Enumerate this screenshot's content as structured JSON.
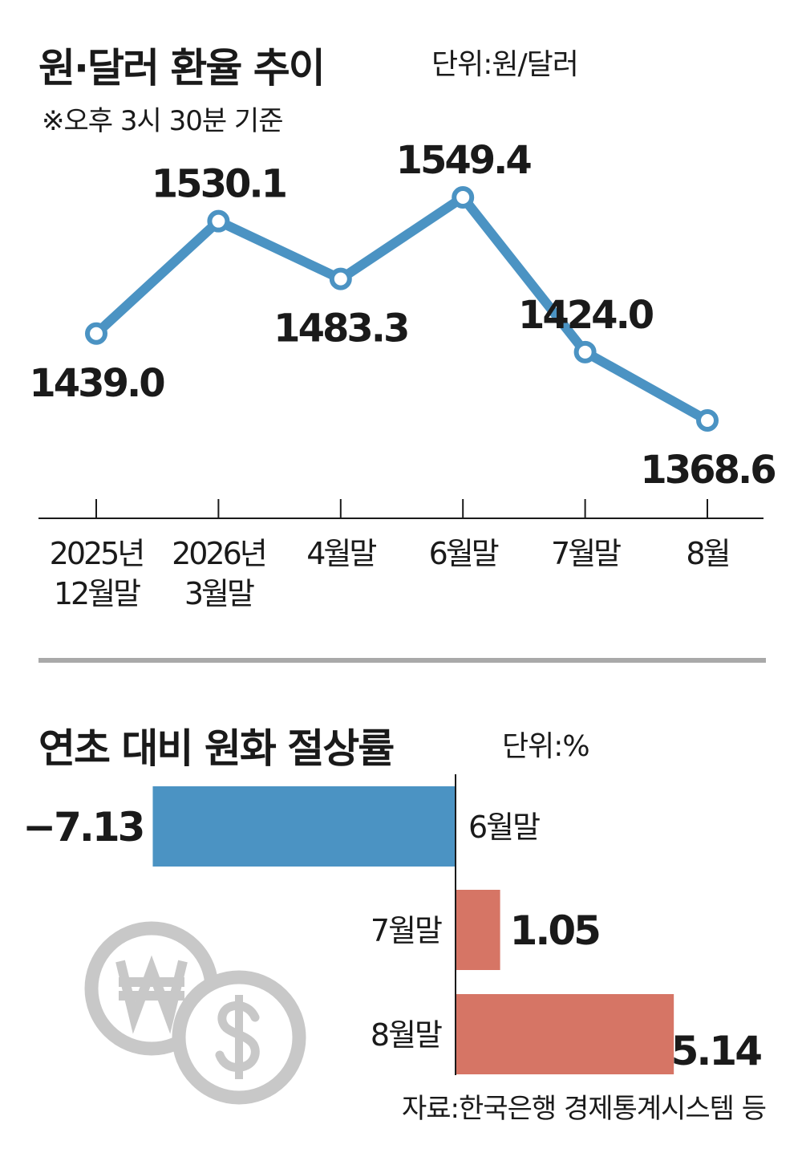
{
  "line_section": {
    "title": "원·달러 환율 추이",
    "unit": "단위:원/달러",
    "note": "※오후 3시 30분 기준"
  },
  "bar_section": {
    "title": "연초 대비 원화 절상률",
    "unit": "단위:%"
  },
  "source": "자료:한국은행 경제통계시스템 등",
  "icons": [
    "won-coin-icon",
    "dollar-coin-icon"
  ],
  "colors": {
    "line": "#4b93c3",
    "bar_negative": "#4b93c3",
    "bar_positive": "#d67565",
    "coin": "#c8c8c8",
    "divider": "#a9a9a9",
    "background": "#ffffff"
  },
  "chart_data": [
    {
      "type": "line",
      "title": "원·달러 환율 추이",
      "unit": "원/달러",
      "categories": [
        [
          "2025년",
          "12월말"
        ],
        [
          "2026년",
          "3월말"
        ],
        [
          "4월말"
        ],
        [
          "6월말"
        ],
        [
          "7월말"
        ],
        [
          "8월"
        ]
      ],
      "values": [
        1439.0,
        1530.1,
        1483.3,
        1549.4,
        1424.0,
        1368.6
      ],
      "value_labels": [
        "1439.0",
        "1530.1",
        "1483.3",
        "1549.4",
        "1424.0",
        "1368.6"
      ],
      "label_position": [
        "below",
        "above",
        "below",
        "above",
        "above",
        "below"
      ],
      "ylim": [
        1300,
        1600
      ],
      "grid": false
    },
    {
      "type": "bar",
      "orientation": "horizontal",
      "title": "연초 대비 원화 절상률",
      "unit": "%",
      "categories": [
        "6월말",
        "7월말",
        "8월말"
      ],
      "values": [
        -7.13,
        1.05,
        5.14
      ],
      "value_labels": [
        "−7.13",
        "1.05",
        "5.14"
      ],
      "xlim": [
        -8.0,
        5.3
      ],
      "grid": false
    }
  ]
}
